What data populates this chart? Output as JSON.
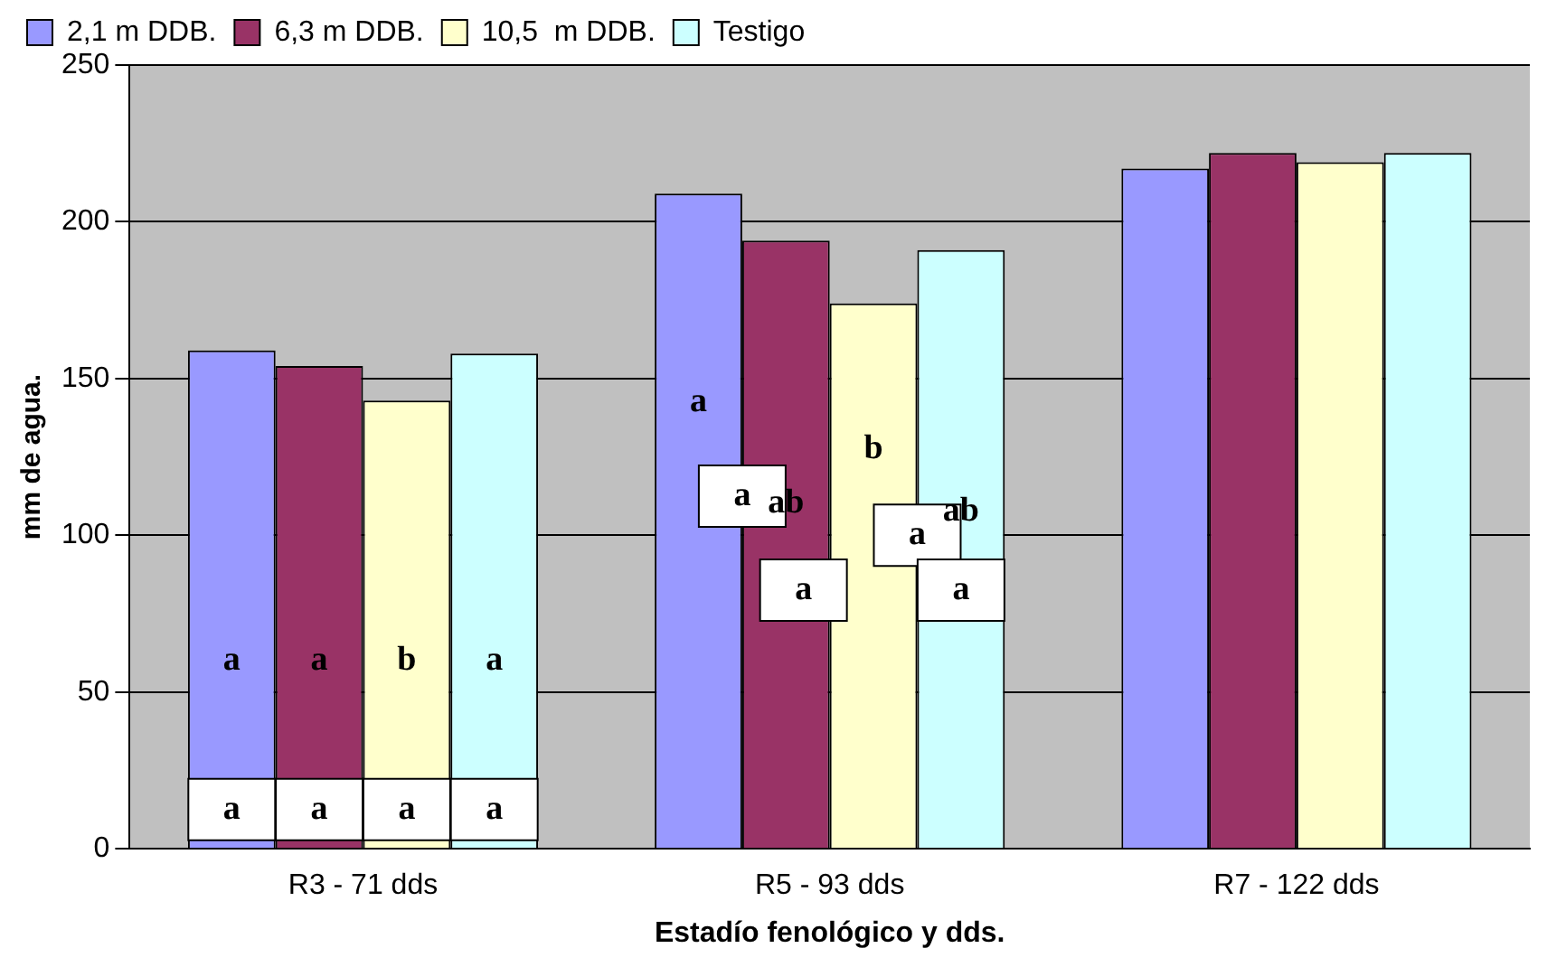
{
  "chart_data": {
    "type": "bar",
    "xlabel": "Estadío fenológico y dds.",
    "ylabel": "mm de agua.",
    "categories": [
      "R3 - 71 dds",
      "R5 - 93 dds",
      "R7 - 122 dds"
    ],
    "series": [
      {
        "name": "2,1 m DDB.",
        "color": "#9999ff",
        "values": [
          159,
          209,
          217
        ]
      },
      {
        "name": "6,3 m DDB.",
        "color": "#993366",
        "values": [
          154,
          194,
          222
        ]
      },
      {
        "name": "10,5  m DDB.",
        "color": "#ffffcc",
        "values": [
          143,
          174,
          219
        ]
      },
      {
        "name": "Testigo",
        "color": "#ccffff",
        "values": [
          158,
          191,
          222
        ]
      }
    ],
    "ylim": [
      0,
      250
    ],
    "yticks": [
      0,
      50,
      100,
      150,
      200,
      250
    ],
    "grid": "y",
    "legend": "top",
    "annotations": [
      "a",
      "a",
      "b",
      "a",
      "a",
      "a",
      "a",
      "a",
      "a",
      "ab",
      "b",
      "ab",
      "a",
      "a",
      "a",
      "a"
    ]
  }
}
